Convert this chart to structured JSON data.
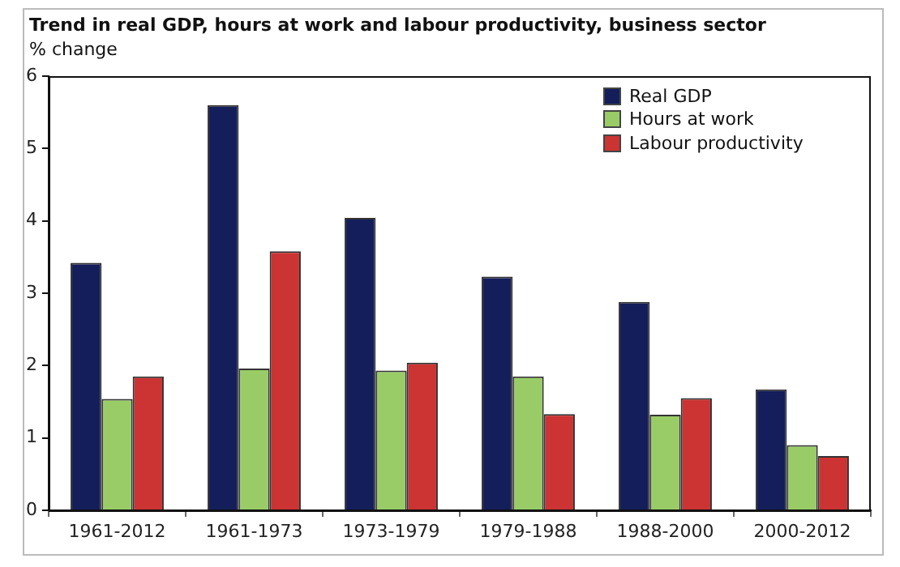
{
  "chart_data": {
    "type": "bar",
    "title": "Trend in real GDP, hours at work and labour productivity, business sector",
    "ylabel": "% change",
    "categories": [
      "1961-2012",
      "1961-1973",
      "1973-1979",
      "1979-1988",
      "1988-2000",
      "2000-2012"
    ],
    "series": [
      {
        "name": "Real GDP",
        "color": "#141e5a",
        "values": [
          3.42,
          5.6,
          4.04,
          3.23,
          2.88,
          1.67
        ]
      },
      {
        "name": "Hours at work",
        "color": "#99cc66",
        "values": [
          1.54,
          1.96,
          1.93,
          1.85,
          1.32,
          0.9
        ]
      },
      {
        "name": "Labour productivity",
        "color": "#cc3333",
        "values": [
          1.85,
          3.58,
          2.04,
          1.33,
          1.55,
          0.75
        ]
      }
    ],
    "ylim": [
      0,
      6
    ],
    "yticks": [
      0,
      1,
      2,
      3,
      4,
      5,
      6
    ],
    "grid": false,
    "legend": "top right"
  }
}
